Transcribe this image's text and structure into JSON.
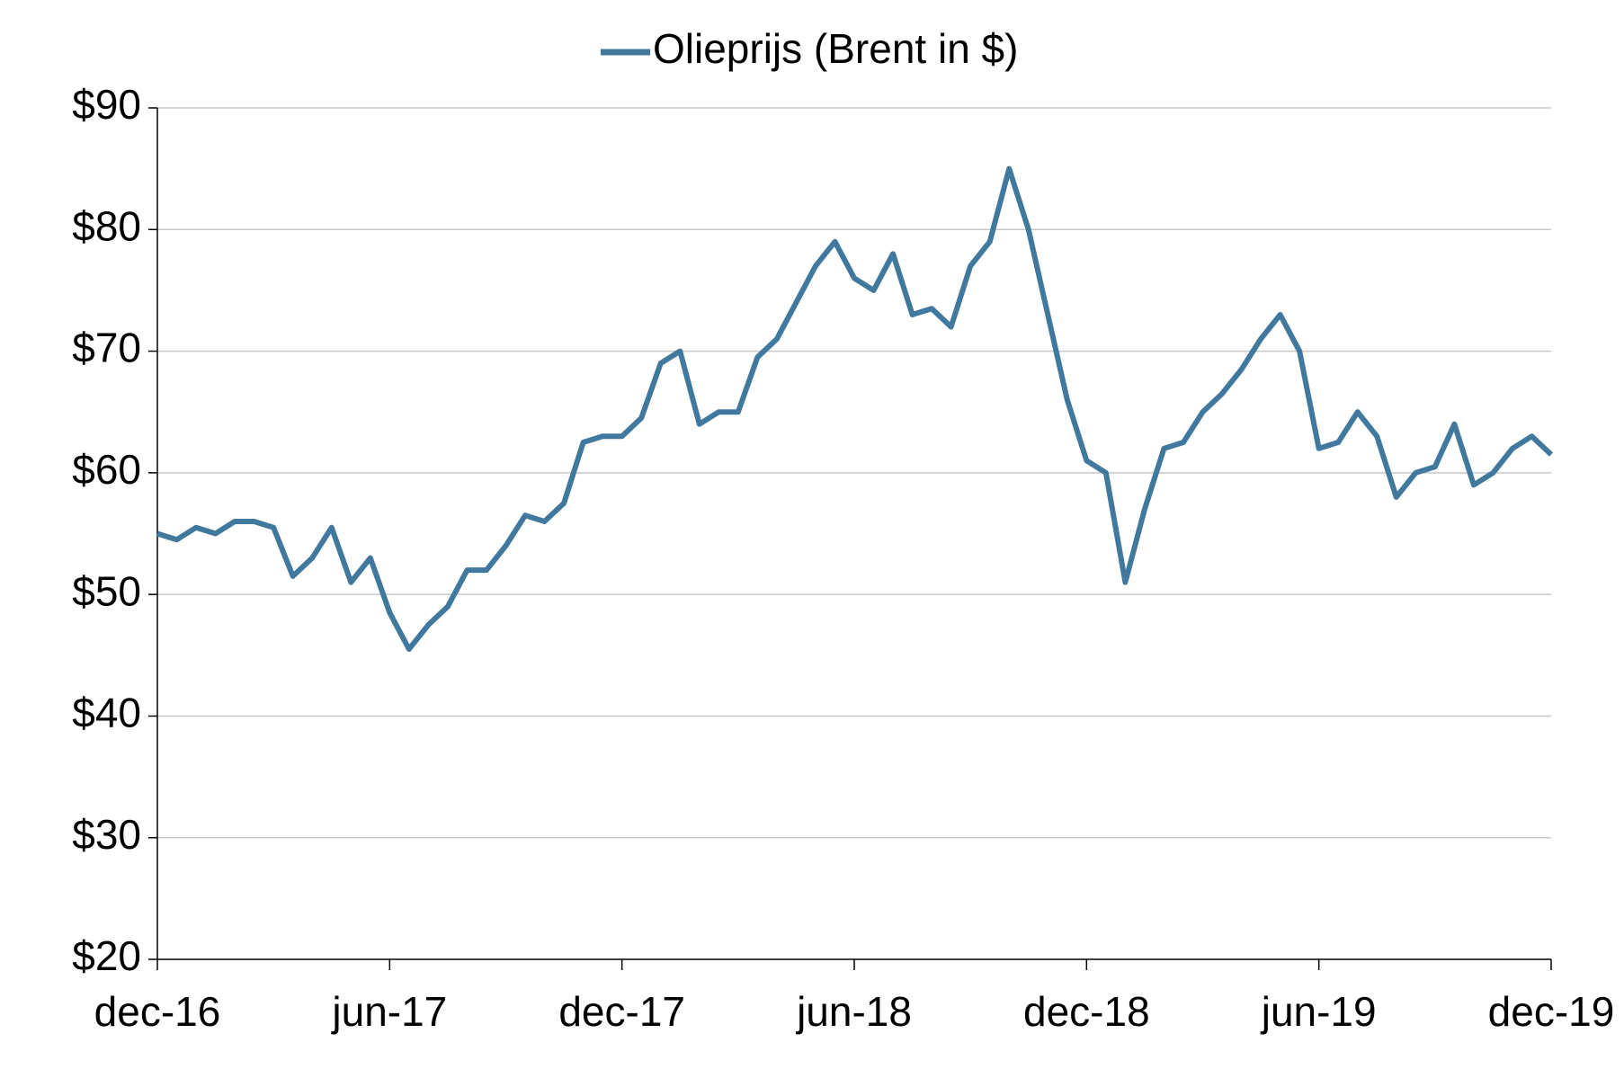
{
  "chart_data": {
    "type": "line",
    "categories": [
      "dec-16",
      null,
      null,
      null,
      null,
      null,
      null,
      null,
      null,
      null,
      null,
      null,
      "jun-17",
      null,
      null,
      null,
      null,
      null,
      null,
      null,
      null,
      null,
      null,
      null,
      "dec-17",
      null,
      null,
      null,
      null,
      null,
      null,
      null,
      null,
      null,
      null,
      null,
      "jun-18",
      null,
      null,
      null,
      null,
      null,
      null,
      null,
      null,
      null,
      null,
      null,
      "dec-18",
      null,
      null,
      null,
      null,
      null,
      null,
      null,
      null,
      null,
      null,
      null,
      "jun-19",
      null,
      null,
      null,
      null,
      null,
      null,
      null,
      null,
      null,
      null,
      null,
      "dec-19"
    ],
    "series": [
      {
        "name": "Olieprijs (Brent in $)",
        "color": "#41789e",
        "values": [
          55,
          54.5,
          55.5,
          55,
          56,
          56,
          55.5,
          51.5,
          53,
          55.5,
          51,
          53,
          48.5,
          45.5,
          47.5,
          49,
          52,
          52,
          54,
          56.5,
          56,
          57.5,
          62.5,
          63,
          63,
          64.5,
          69,
          70,
          64,
          65,
          65,
          69.5,
          71,
          74,
          77,
          79,
          76,
          75,
          78,
          73,
          73.5,
          72,
          77,
          79,
          85,
          80,
          73,
          66,
          61,
          60,
          51,
          57,
          62,
          62.5,
          65,
          66.5,
          68.5,
          71,
          73,
          70,
          62,
          62.5,
          65,
          63,
          58,
          60,
          60.5,
          64,
          59,
          60,
          62,
          63,
          61.5
        ]
      }
    ],
    "ylim": [
      20,
      90
    ],
    "yticks": [
      {
        "value": 20,
        "label": "$20"
      },
      {
        "value": 30,
        "label": "$30"
      },
      {
        "value": 40,
        "label": "$40"
      },
      {
        "value": 50,
        "label": "$50"
      },
      {
        "value": 60,
        "label": "$60"
      },
      {
        "value": 70,
        "label": "$70"
      },
      {
        "value": 80,
        "label": "$80"
      },
      {
        "value": 90,
        "label": "$90"
      }
    ],
    "grid": true,
    "legend": "top"
  }
}
